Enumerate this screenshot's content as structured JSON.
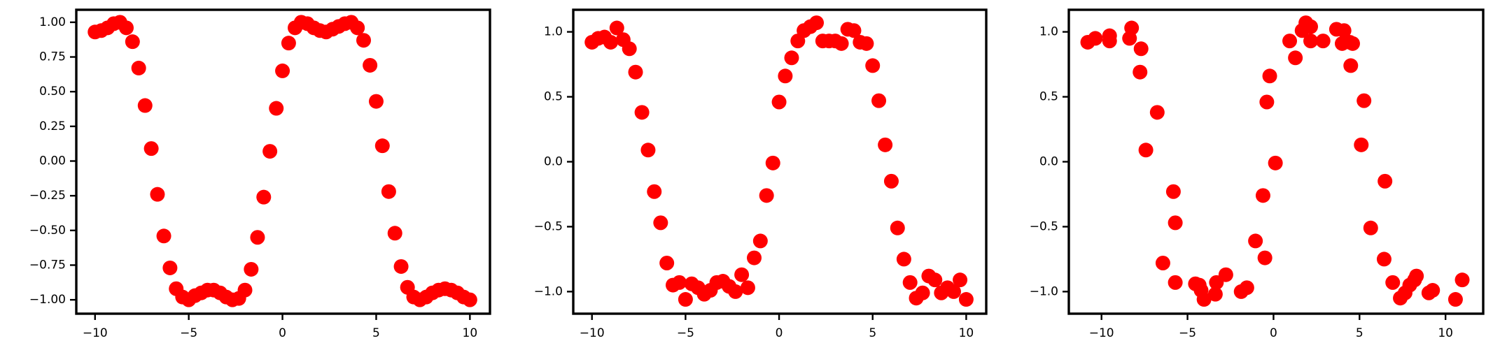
{
  "chart_data": [
    {
      "type": "scatter",
      "color": "#ff0000",
      "x": [
        -10,
        -9.67,
        -9.33,
        -9,
        -8.67,
        -8.33,
        -8,
        -7.67,
        -7.33,
        -7,
        -6.67,
        -6.33,
        -6,
        -5.67,
        -5.33,
        -5,
        -4.67,
        -4.33,
        -4,
        -3.67,
        -3.33,
        -3,
        -2.67,
        -2.33,
        -2,
        -1.67,
        -1.33,
        -1,
        -0.67,
        -0.33,
        0,
        0.33,
        0.67,
        1,
        1.33,
        1.67,
        2,
        2.33,
        2.67,
        3,
        3.33,
        3.67,
        4,
        4.33,
        4.67,
        5,
        5.33,
        5.67,
        6,
        6.33,
        6.67,
        7,
        7.33,
        7.67,
        8,
        8.33,
        8.67,
        9,
        9.33,
        9.67,
        10
      ],
      "values": [
        0.93,
        0.94,
        0.96,
        0.99,
        1.0,
        0.96,
        0.86,
        0.67,
        0.4,
        0.09,
        -0.24,
        -0.54,
        -0.77,
        -0.92,
        -0.98,
        -1.0,
        -0.97,
        -0.95,
        -0.93,
        -0.93,
        -0.95,
        -0.98,
        -1.0,
        -0.99,
        -0.93,
        -0.78,
        -0.55,
        -0.26,
        0.07,
        0.38,
        0.65,
        0.85,
        0.96,
        1.0,
        0.99,
        0.96,
        0.94,
        0.93,
        0.95,
        0.97,
        0.99,
        1.0,
        0.96,
        0.87,
        0.69,
        0.43,
        0.11,
        -0.22,
        -0.52,
        -0.76,
        -0.91,
        -0.98,
        -1.0,
        -0.98,
        -0.95,
        -0.93,
        -0.92,
        -0.93,
        -0.95,
        -0.98,
        -1.0
      ],
      "xlim": [
        -11.0,
        11.07
      ],
      "ylim": [
        -1.1,
        1.09
      ],
      "xticks": [
        {
          "value": -10,
          "label": "−10"
        },
        {
          "value": -5,
          "label": "−5"
        },
        0,
        5,
        10
      ],
      "yticks": [
        {
          "value": -1,
          "label": "−1.00"
        },
        {
          "value": -0.75,
          "label": "−0.75"
        },
        {
          "value": -0.5,
          "label": "−0.50"
        },
        {
          "value": -0.25,
          "label": "−0.25"
        },
        {
          "value": 0,
          "label": "0.00"
        },
        0.25,
        {
          "value": 0.5,
          "label": "0.50"
        },
        0.75,
        {
          "value": 1,
          "label": "1.00"
        }
      ]
    },
    {
      "type": "scatter",
      "color": "#ff0000",
      "x": [
        -10,
        -9.67,
        -9.33,
        -9,
        -8.67,
        -8.33,
        -8,
        -7.67,
        -7.33,
        -7,
        -6.67,
        -6.33,
        -6,
        -5.67,
        -5.33,
        -5,
        -4.67,
        -4.33,
        -4,
        -3.67,
        -3.33,
        -3,
        -2.67,
        -2.33,
        -2,
        -1.67,
        -1.33,
        -1,
        -0.67,
        -0.33,
        0,
        0.33,
        0.67,
        1,
        1.33,
        1.67,
        2,
        2.33,
        2.67,
        3,
        3.33,
        3.67,
        4,
        4.33,
        4.67,
        5,
        5.33,
        5.67,
        6,
        6.33,
        6.67,
        7,
        7.33,
        7.67,
        8,
        8.33,
        8.67,
        9,
        9.33,
        9.67,
        10
      ],
      "values": [
        0.92,
        0.95,
        0.96,
        0.92,
        1.03,
        0.94,
        0.87,
        0.69,
        0.38,
        0.09,
        -0.23,
        -0.47,
        -0.78,
        -0.95,
        -0.93,
        -1.06,
        -0.94,
        -0.97,
        -1.02,
        -0.99,
        -0.93,
        -0.92,
        -0.96,
        -1.0,
        -0.87,
        -0.97,
        -0.74,
        -0.61,
        -0.26,
        -0.01,
        0.46,
        0.66,
        0.8,
        0.93,
        1.01,
        1.04,
        1.07,
        0.93,
        0.93,
        0.93,
        0.91,
        1.02,
        1.01,
        0.92,
        0.91,
        0.74,
        0.47,
        0.13,
        -0.15,
        -0.51,
        -0.75,
        -0.93,
        -1.05,
        -1.01,
        -0.88,
        -0.91,
        -1.01,
        -0.97,
        -1.0,
        -0.91,
        -1.06
      ],
      "xlim": [
        -11.0,
        11.07
      ],
      "ylim": [
        -1.17,
        1.17
      ],
      "xticks": [
        {
          "value": -10,
          "label": "−10"
        },
        {
          "value": -5,
          "label": "−5"
        },
        0,
        5,
        10
      ],
      "yticks": [
        {
          "value": -1,
          "label": "−1.0"
        },
        {
          "value": -0.5,
          "label": "−0.5"
        },
        {
          "value": 0,
          "label": "0.0"
        },
        0.5,
        {
          "value": 1,
          "label": "1.0"
        }
      ]
    },
    {
      "type": "scatter",
      "color": "#ff0000",
      "x": [
        -10.8,
        -10.36,
        -9.53,
        -9.53,
        -8.37,
        -8.25,
        -7.7,
        -7.76,
        -6.76,
        -7.42,
        -5.82,
        -5.71,
        -6.43,
        -5.71,
        -4.54,
        -4.32,
        -4.04,
        -4.21,
        -3.38,
        -3.32,
        -2.77,
        -1.88,
        -1.55,
        -1.05,
        -0.61,
        -0.5,
        -0.39,
        -0.22,
        0.11,
        0.94,
        1.27,
        1.66,
        1.88,
        2.16,
        2.16,
        2.88,
        3.66,
        3.99,
        4.1,
        4.43,
        4.6,
        4.49,
        5.26,
        5.1,
        6.48,
        5.65,
        6.43,
        6.93,
        7.37,
        7.65,
        7.92,
        8.2,
        8.31,
        9.03,
        9.25,
        10.58,
        10.97
      ],
      "values": [
        0.92,
        0.95,
        0.93,
        0.97,
        0.95,
        1.03,
        0.87,
        0.69,
        0.38,
        0.09,
        -0.23,
        -0.47,
        -0.78,
        -0.93,
        -0.94,
        -0.95,
        -1.06,
        -0.99,
        -1.02,
        -0.93,
        -0.87,
        -1.0,
        -0.97,
        -0.61,
        -0.26,
        -0.74,
        0.46,
        0.66,
        -0.01,
        0.93,
        0.8,
        1.01,
        1.07,
        1.04,
        0.93,
        0.93,
        1.02,
        0.91,
        1.01,
        0.92,
        0.91,
        0.74,
        0.47,
        0.13,
        -0.15,
        -0.51,
        -0.75,
        -0.93,
        -1.05,
        -1.01,
        -0.95,
        -0.91,
        -0.88,
        -1.01,
        -0.99,
        -1.06,
        -0.91
      ],
      "xlim": [
        -11.9,
        12.19
      ],
      "ylim": [
        -1.17,
        1.17
      ],
      "xticks": [
        {
          "value": -10,
          "label": "−10"
        },
        {
          "value": -5,
          "label": "−5"
        },
        0,
        5,
        10
      ],
      "yticks": [
        {
          "value": -1,
          "label": "−1.0"
        },
        {
          "value": -0.5,
          "label": "−0.5"
        },
        {
          "value": 0,
          "label": "0.0"
        },
        0.5,
        {
          "value": 1,
          "label": "1.0"
        }
      ]
    }
  ]
}
